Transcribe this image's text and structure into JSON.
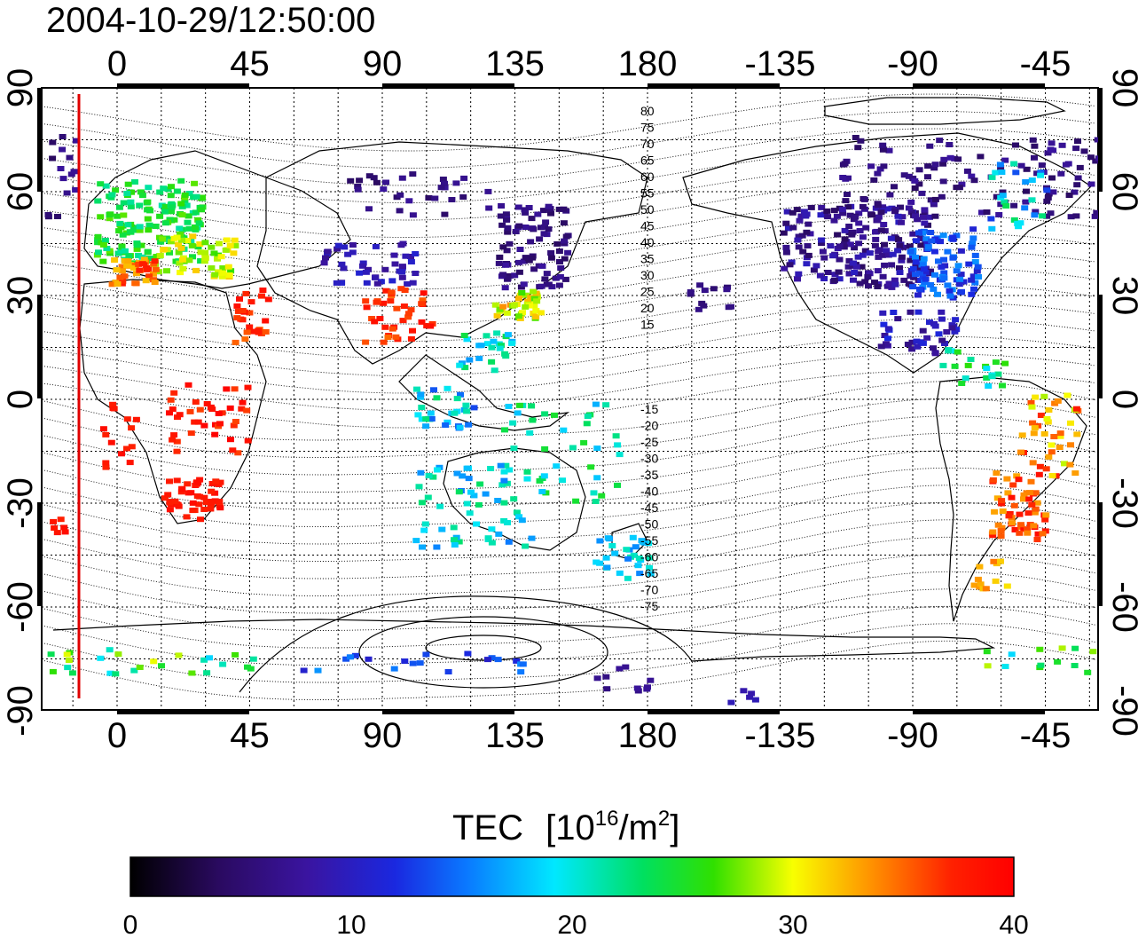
{
  "title": "2004-10-29/12:50:00",
  "top_lon_ticks": [
    "0",
    "45",
    "90",
    "135",
    "180",
    "-135",
    "-90",
    "-45"
  ],
  "bottom_lon_ticks": [
    "0",
    "45",
    "90",
    "135",
    "180",
    "-135",
    "-90",
    "-45"
  ],
  "lat_ticks": [
    "90",
    "60",
    "30",
    "0",
    "-30",
    "-60",
    "-90"
  ],
  "colorbar": {
    "label": "TEC",
    "unit_base": "[10",
    "unit_exp": "16",
    "unit_mid": "/m",
    "unit_exp2": "2",
    "unit_end": "]",
    "ticks": [
      "0",
      "10",
      "20",
      "30",
      "40"
    ],
    "range": [
      0,
      40
    ],
    "colormap": [
      "#000000",
      "#3a0a8c",
      "#0a3cff",
      "#00e6ff",
      "#00e040",
      "#f0ff00",
      "#ff8000",
      "#ff0000"
    ]
  },
  "mag_lat_labels_north": [
    "80",
    "75",
    "70",
    "65",
    "60",
    "55",
    "50",
    "45",
    "40",
    "35",
    "30",
    "25",
    "20",
    "15"
  ],
  "mag_lat_labels_south": [
    "-15",
    "-20",
    "-25",
    "-30",
    "-35",
    "-40",
    "-45",
    "-50",
    "-55",
    "-60",
    "-65",
    "-70",
    "-75"
  ],
  "colors": {
    "terminator": "#e00000",
    "background": "#ffffff"
  }
}
